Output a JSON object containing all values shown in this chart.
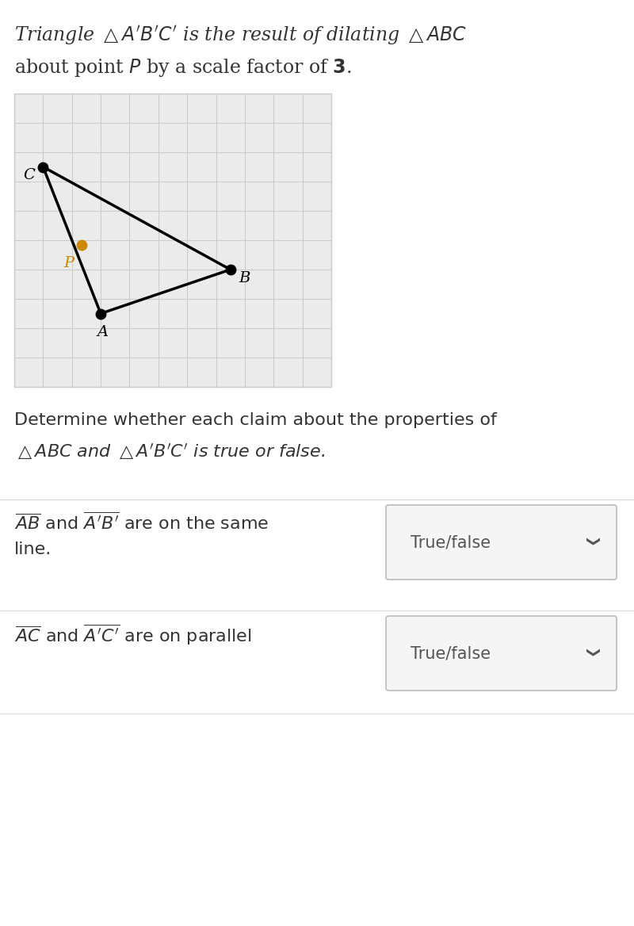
{
  "grid_xlim": [
    0,
    11
  ],
  "grid_ylim": [
    0,
    10
  ],
  "grid_color": "#cccccc",
  "grid_bg": "#ebebeb",
  "A": [
    3.0,
    2.5
  ],
  "B": [
    7.5,
    4.0
  ],
  "C": [
    1.0,
    7.5
  ],
  "P": [
    2.33,
    4.83
  ],
  "point_color": "#000000",
  "P_color": "#cc8800",
  "triangle_color": "#000000",
  "dropdown_bg": "#f5f5f5",
  "dropdown_border": "#bbbbbb",
  "text_color": "#333333",
  "bg_color": "#ffffff",
  "separator_color": "#dddddd"
}
